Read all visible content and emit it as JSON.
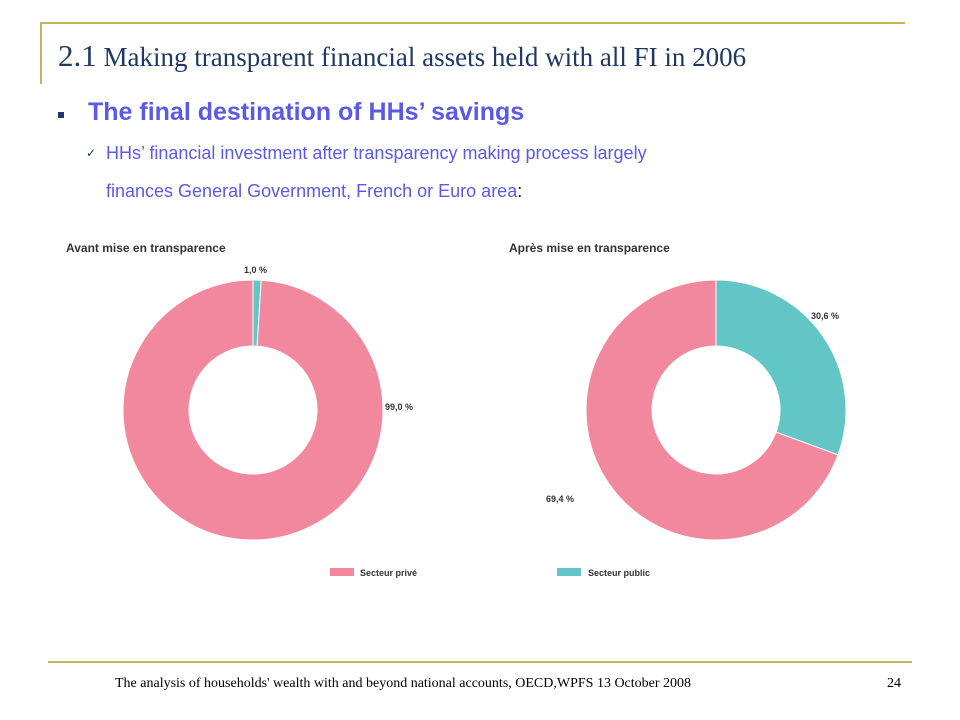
{
  "slide": {
    "title_num": "2.1",
    "title_text": "Making transparent financial assets held with all FI in 2006",
    "subhead": "The final destination of HHs’ savings",
    "body_line1": "HHs’ financial investment after transparency making process largely",
    "body_line2": "finances General Government, French or Euro area",
    "body_colon": ":",
    "footer": "The analysis of households' wealth with and beyond national accounts, OECD,WPFS 13 October 2008",
    "page_number": "24"
  },
  "colors": {
    "prive": "#f2889e",
    "public": "#63c6c6",
    "frame": "#c8b35a",
    "title": "#1f3864",
    "accent": "#5a5ae6"
  },
  "chart_data": [
    {
      "type": "pie",
      "donut": true,
      "title": "Avant mise en transparence",
      "slices": [
        {
          "label": "Secteur public",
          "value": 1.0,
          "display": "1,0 %",
          "color": "#63c6c6"
        },
        {
          "label": "Secteur privé",
          "value": 99.0,
          "display": "99,0 %",
          "color": "#f2889e"
        }
      ],
      "legend": {
        "position": "bottom",
        "entry": "Secteur privé",
        "color": "#f2889e"
      }
    },
    {
      "type": "pie",
      "donut": true,
      "title": "Après mise en transparence",
      "slices": [
        {
          "label": "Secteur public",
          "value": 30.6,
          "display": "30,6 %",
          "color": "#63c6c6"
        },
        {
          "label": "Secteur privé",
          "value": 69.4,
          "display": "69,4 %",
          "color": "#f2889e"
        }
      ],
      "legend": {
        "position": "bottom",
        "entry": "Secteur public",
        "color": "#63c6c6"
      }
    }
  ]
}
